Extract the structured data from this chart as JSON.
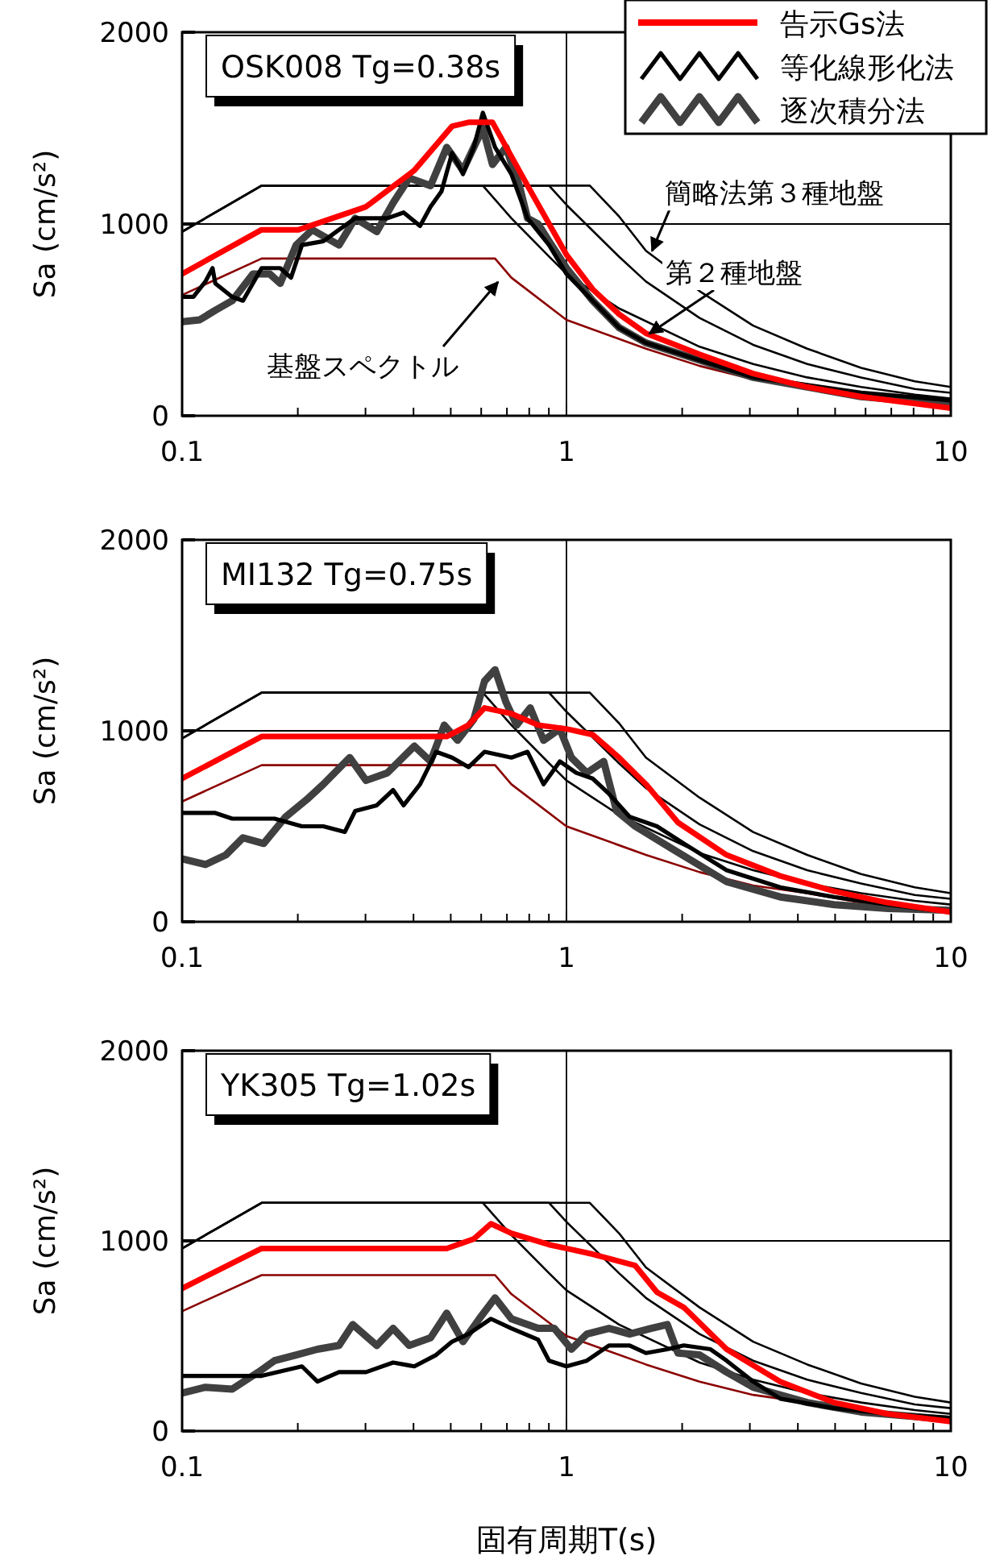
{
  "chart_data": [
    {
      "type": "line",
      "title": "OSK008 Tg=0.38s",
      "ylabel": "Sa (cm/s²)",
      "log": "x",
      "xlim": [
        0.1,
        10
      ],
      "ylim": [
        0,
        2000
      ],
      "xticks": [
        0.1,
        1,
        10
      ],
      "yticks": [
        0,
        1000,
        2000
      ],
      "grid": true,
      "legend": "top right",
      "annotations": [
        {
          "text": "簡略法第３種地盤",
          "x": 1.67,
          "y": 860
        },
        "第２種地盤",
        "基盤スペクトル"
      ],
      "series": [
        {
          "name": "告示Gs法",
          "color": "#ff0000",
          "x": [
            0.1,
            0.161,
            0.201,
            0.301,
            0.402,
            0.504,
            0.556,
            0.642,
            0.792,
            1.0,
            1.17,
            1.37,
            1.61,
            2.22,
            3.06,
            4.23,
            5.84,
            10
          ],
          "values": [
            740,
            970,
            970,
            1090,
            1280,
            1510,
            1530,
            1530,
            1200,
            840,
            660,
            530,
            430,
            320,
            220,
            150,
            100,
            40
          ]
        },
        {
          "name": "等化線形化法",
          "color": "#000000",
          "x": [
            0.1,
            0.107,
            0.115,
            0.12,
            0.122,
            0.135,
            0.144,
            0.161,
            0.18,
            0.192,
            0.205,
            0.233,
            0.256,
            0.282,
            0.301,
            0.342,
            0.377,
            0.416,
            0.443,
            0.473,
            0.504,
            0.538,
            0.574,
            0.606,
            0.652,
            0.719,
            0.792,
            0.901,
            1.0,
            1.17,
            1.37,
            1.61,
            2.22,
            3.06,
            4.23,
            5.84,
            10
          ],
          "values": [
            620,
            620,
            700,
            770,
            690,
            620,
            600,
            770,
            770,
            720,
            890,
            910,
            970,
            1030,
            1030,
            1030,
            1060,
            990,
            1090,
            1170,
            1370,
            1260,
            1400,
            1580,
            1400,
            1260,
            1030,
            890,
            740,
            600,
            460,
            380,
            290,
            200,
            160,
            120,
            80
          ]
        },
        {
          "name": "逐次積分法",
          "color": "#404040",
          "x": [
            0.1,
            0.111,
            0.122,
            0.135,
            0.153,
            0.169,
            0.18,
            0.198,
            0.218,
            0.256,
            0.282,
            0.321,
            0.354,
            0.39,
            0.443,
            0.488,
            0.538,
            0.606,
            0.642,
            0.696,
            0.754,
            0.792,
            0.844,
            0.901,
            1.0,
            1.17,
            1.37,
            1.61,
            2.22,
            3.06,
            4.23,
            5.84,
            10
          ],
          "values": [
            490,
            500,
            550,
            600,
            740,
            740,
            690,
            890,
            970,
            890,
            1030,
            960,
            1110,
            1240,
            1200,
            1400,
            1280,
            1500,
            1310,
            1400,
            1200,
            1030,
            1000,
            910,
            770,
            600,
            460,
            380,
            290,
            200,
            150,
            100,
            60
          ]
        },
        {
          "color": "#000000",
          "x": [
            0.1,
            0.161,
            1.15,
            1.37,
            1.61,
            2.22,
            3.06,
            4.23,
            5.84,
            8.06,
            10
          ],
          "values": [
            960,
            1200,
            1200,
            1040,
            860,
            650,
            470,
            350,
            250,
            180,
            150
          ]
        },
        {
          "color": "#000000",
          "x": [
            0.1,
            0.161,
            0.901,
            1.0,
            1.37,
            1.61,
            2.22,
            3.06,
            4.23,
            5.84,
            8.06,
            10
          ],
          "values": [
            960,
            1200,
            1200,
            1100,
            830,
            700,
            510,
            370,
            270,
            200,
            140,
            120
          ]
        },
        {
          "color": "#000000",
          "x": [
            0.1,
            0.161,
            0.606,
            0.719,
            0.901,
            1.0,
            1.37,
            2.22,
            3.06,
            4.23,
            5.84,
            8.06,
            10
          ],
          "values": [
            960,
            1200,
            1200,
            1030,
            830,
            740,
            560,
            360,
            270,
            200,
            150,
            110,
            90
          ]
        },
        {
          "color": "#8b0000",
          "x": [
            0.1,
            0.161,
            0.652,
            0.719,
            1.0,
            1.61,
            2.22,
            3.06,
            4.23,
            5.84,
            10
          ],
          "values": [
            630,
            820,
            820,
            720,
            500,
            350,
            260,
            190,
            150,
            100,
            50
          ]
        }
      ]
    },
    {
      "type": "line",
      "title": "MI132 Tg=0.75s",
      "ylabel": "Sa (cm/s²)",
      "log": "x",
      "xlim": [
        0.1,
        10
      ],
      "ylim": [
        0,
        2000
      ],
      "xticks": [
        0.1,
        1,
        10
      ],
      "yticks": [
        0,
        1000,
        2000
      ],
      "grid": true,
      "series": [
        {
          "color": "#ff0000",
          "x": [
            0.1,
            0.161,
            0.488,
            0.556,
            0.612,
            0.719,
            0.844,
            1.0,
            1.17,
            1.37,
            1.61,
            1.95,
            2.61,
            3.6,
            4.97,
            6.86,
            10
          ],
          "values": [
            750,
            970,
            970,
            1030,
            1120,
            1090,
            1030,
            1010,
            980,
            860,
            720,
            520,
            350,
            240,
            160,
            100,
            50
          ]
        },
        {
          "color": "#000000",
          "x": [
            0.1,
            0.122,
            0.135,
            0.148,
            0.174,
            0.205,
            0.233,
            0.265,
            0.282,
            0.321,
            0.354,
            0.377,
            0.416,
            0.458,
            0.504,
            0.556,
            0.612,
            0.719,
            0.792,
            0.872,
            0.961,
            1.06,
            1.17,
            1.29,
            1.46,
            1.72,
            2.02,
            2.61,
            3.6,
            4.97,
            6.86,
            10
          ],
          "values": [
            570,
            570,
            540,
            540,
            540,
            500,
            500,
            470,
            580,
            610,
            690,
            610,
            720,
            890,
            860,
            810,
            890,
            860,
            890,
            720,
            840,
            780,
            750,
            670,
            550,
            500,
            410,
            270,
            180,
            130,
            90,
            50
          ]
        },
        {
          "color": "#404040",
          "x": [
            0.1,
            0.115,
            0.13,
            0.144,
            0.163,
            0.186,
            0.211,
            0.233,
            0.273,
            0.301,
            0.342,
            0.402,
            0.443,
            0.481,
            0.521,
            0.574,
            0.612,
            0.652,
            0.696,
            0.742,
            0.805,
            0.872,
            0.961,
            1.03,
            1.13,
            1.25,
            1.35,
            1.51,
            1.89,
            2.61,
            3.6,
            4.97,
            6.86,
            10
          ],
          "values": [
            330,
            300,
            350,
            440,
            410,
            550,
            640,
            720,
            860,
            740,
            780,
            920,
            840,
            1030,
            950,
            1060,
            1260,
            1320,
            1150,
            1030,
            1120,
            950,
            1010,
            860,
            780,
            840,
            580,
            500,
            380,
            210,
            130,
            90,
            70,
            60
          ]
        },
        {
          "color": "#000000",
          "x": [
            0.1,
            0.161,
            1.15,
            1.37,
            1.61,
            2.22,
            3.06,
            4.23,
            5.84,
            8.06,
            10
          ],
          "values": [
            960,
            1200,
            1200,
            1040,
            860,
            650,
            470,
            350,
            250,
            180,
            150
          ]
        },
        {
          "color": "#000000",
          "x": [
            0.1,
            0.161,
            0.901,
            1.0,
            1.37,
            1.61,
            2.22,
            3.06,
            4.23,
            5.84,
            8.06,
            10
          ],
          "values": [
            960,
            1200,
            1200,
            1100,
            830,
            700,
            510,
            370,
            270,
            200,
            140,
            120
          ]
        },
        {
          "color": "#000000",
          "x": [
            0.1,
            0.161,
            0.606,
            0.719,
            0.901,
            1.0,
            1.37,
            2.22,
            3.06,
            4.23,
            5.84,
            8.06,
            10
          ],
          "values": [
            960,
            1200,
            1200,
            1030,
            830,
            740,
            560,
            360,
            270,
            200,
            150,
            110,
            90
          ]
        },
        {
          "color": "#8b0000",
          "x": [
            0.1,
            0.161,
            0.652,
            0.719,
            1.0,
            1.61,
            2.22,
            3.06,
            4.23,
            5.84,
            10
          ],
          "values": [
            630,
            820,
            820,
            720,
            500,
            350,
            260,
            190,
            150,
            100,
            50
          ]
        }
      ]
    },
    {
      "type": "line",
      "title": "YK305 Tg=1.02s",
      "ylabel": "Sa (cm/s²)",
      "xlabel": "固有周期T(s)",
      "log": "x",
      "xlim": [
        0.1,
        10
      ],
      "ylim": [
        0,
        2000
      ],
      "xticks": [
        0.1,
        1,
        10
      ],
      "yticks": [
        0,
        1000,
        2000
      ],
      "grid": true,
      "series": [
        {
          "color": "#ff0000",
          "x": [
            0.1,
            0.161,
            0.488,
            0.574,
            0.636,
            0.719,
            0.901,
            1.0,
            1.17,
            1.51,
            1.72,
            2.02,
            2.61,
            3.6,
            4.97,
            6.86,
            10
          ],
          "values": [
            750,
            960,
            960,
            1010,
            1090,
            1040,
            980,
            960,
            930,
            870,
            730,
            650,
            430,
            260,
            150,
            90,
            50
          ]
        },
        {
          "color": "#000000",
          "x": [
            0.1,
            0.161,
            0.205,
            0.225,
            0.256,
            0.301,
            0.354,
            0.402,
            0.458,
            0.504,
            0.556,
            0.636,
            0.719,
            0.844,
            0.901,
            1.0,
            1.13,
            1.29,
            1.46,
            1.61,
            1.83,
            2.02,
            2.37,
            2.61,
            3.06,
            3.6,
            4.97,
            6.86,
            10
          ],
          "values": [
            290,
            290,
            340,
            260,
            310,
            310,
            360,
            340,
            400,
            470,
            510,
            590,
            540,
            480,
            370,
            340,
            370,
            450,
            450,
            410,
            430,
            450,
            430,
            370,
            260,
            170,
            120,
            90,
            70
          ]
        },
        {
          "color": "#404040",
          "x": [
            0.1,
            0.115,
            0.135,
            0.158,
            0.174,
            0.198,
            0.225,
            0.256,
            0.278,
            0.321,
            0.354,
            0.39,
            0.443,
            0.488,
            0.538,
            0.593,
            0.652,
            0.719,
            0.844,
            0.93,
            1.03,
            1.13,
            1.29,
            1.46,
            1.66,
            1.83,
            1.95,
            2.22,
            2.61,
            3.06,
            4.23,
            5.84,
            10
          ],
          "values": [
            200,
            230,
            220,
            310,
            370,
            400,
            430,
            450,
            560,
            450,
            540,
            450,
            490,
            620,
            470,
            590,
            700,
            590,
            540,
            540,
            430,
            510,
            540,
            510,
            540,
            560,
            410,
            400,
            310,
            230,
            150,
            100,
            60
          ]
        },
        {
          "color": "#000000",
          "x": [
            0.1,
            0.161,
            1.15,
            1.37,
            1.61,
            2.22,
            3.06,
            4.23,
            5.84,
            8.06,
            10
          ],
          "values": [
            960,
            1200,
            1200,
            1040,
            860,
            650,
            470,
            350,
            250,
            180,
            150
          ]
        },
        {
          "color": "#000000",
          "x": [
            0.1,
            0.161,
            0.901,
            1.0,
            1.37,
            1.61,
            2.22,
            3.06,
            4.23,
            5.84,
            8.06,
            10
          ],
          "values": [
            960,
            1200,
            1200,
            1100,
            830,
            700,
            510,
            370,
            270,
            200,
            140,
            120
          ]
        },
        {
          "color": "#000000",
          "x": [
            0.1,
            0.161,
            0.606,
            0.719,
            0.901,
            1.0,
            1.37,
            2.22,
            3.06,
            4.23,
            5.84,
            8.06,
            10
          ],
          "values": [
            960,
            1200,
            1200,
            1030,
            830,
            740,
            560,
            360,
            270,
            200,
            150,
            110,
            90
          ]
        },
        {
          "color": "#8b0000",
          "x": [
            0.1,
            0.161,
            0.652,
            0.719,
            1.0,
            1.61,
            2.22,
            3.06,
            4.23,
            5.84,
            10
          ],
          "values": [
            630,
            820,
            820,
            720,
            500,
            350,
            260,
            190,
            150,
            100,
            50
          ]
        }
      ]
    }
  ]
}
